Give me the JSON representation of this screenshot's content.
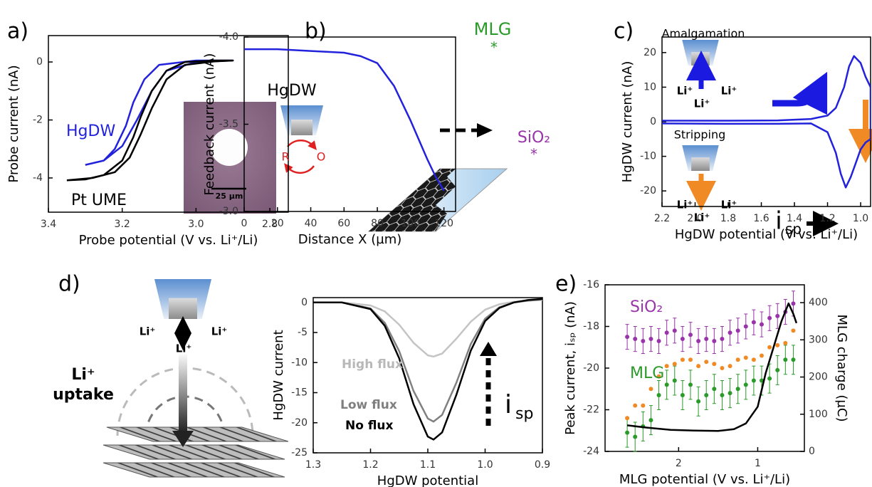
{
  "chart_data": [
    {
      "type": "line",
      "panel": "a)",
      "xlabel": "Probe potential (V vs. Li⁺/Li)",
      "ylabel": "Probe current (nA)",
      "xlim": [
        3.4,
        2.75
      ],
      "ylim": [
        -5.18,
        0.91
      ],
      "xticks": [
        3.4,
        3.2,
        {
          "value": 3,
          "label": "3.0"
        },
        2.8
      ],
      "yticks": [
        0,
        -2,
        -4
      ],
      "series": [
        {
          "name": "HgDW",
          "color": "#2222dd",
          "x": [
            3.3,
            3.25,
            3.22,
            3.19,
            3.17,
            3.14,
            3.1,
            3.0,
            2.9,
            3.0,
            3.08,
            3.12,
            3.16,
            3.2,
            3.25,
            3.3
          ],
          "values": [
            -3.55,
            -3.4,
            -3.0,
            -2.2,
            -1.4,
            -0.6,
            -0.1,
            0.05,
            0.05,
            0.0,
            -0.3,
            -1.0,
            -2.0,
            -2.9,
            -3.4,
            -3.55
          ]
        },
        {
          "name": "Pt UME",
          "color": "#000000",
          "x": [
            3.35,
            3.3,
            3.25,
            3.2,
            3.17,
            3.15,
            3.12,
            3.08,
            3.03,
            2.95,
            2.9,
            2.95,
            3.03,
            3.08,
            3.12,
            3.15,
            3.18,
            3.22,
            3.28,
            3.35
          ],
          "values": [
            -4.08,
            -4.05,
            -3.9,
            -3.4,
            -2.6,
            -1.9,
            -1.0,
            -0.3,
            0.0,
            0.05,
            0.05,
            0.02,
            -0.1,
            -0.6,
            -1.6,
            -2.5,
            -3.3,
            -3.8,
            -4.0,
            -4.08
          ]
        }
      ],
      "annotations": [
        "25 µm"
      ]
    },
    {
      "type": "line",
      "panel": "b)",
      "xlabel": "Distance X (µm)",
      "ylabel": "Feedback current (nA)",
      "xlim": [
        0,
        127
      ],
      "ylim": [
        -3.0,
        -4.0
      ],
      "xticks": [
        0,
        20,
        40,
        60,
        80,
        100,
        120
      ],
      "yticks": [
        {
          "value": -4,
          "label": "-4.0"
        },
        -3.5,
        {
          "value": -3,
          "label": "-3.0"
        }
      ],
      "series": [
        {
          "color": "#2222dd",
          "x": [
            0,
            20,
            40,
            60,
            70,
            80,
            90,
            100,
            110,
            115,
            120
          ],
          "values": [
            -3.93,
            -3.93,
            -3.92,
            -3.91,
            -3.89,
            -3.85,
            -3.72,
            -3.52,
            -3.3,
            -3.2,
            -3.12
          ]
        }
      ],
      "annotations": [
        "MLG",
        "*",
        "SiO₂",
        "*",
        "HgDW",
        "R",
        "O"
      ]
    },
    {
      "type": "line",
      "panel": "c)",
      "xlabel": "HgDW potential (V vs. Li⁺/Li)",
      "ylabel": "HgDW current (nA)",
      "xlim": [
        2.2,
        0.94
      ],
      "ylim": [
        -24.5,
        24.5
      ],
      "xticks": [
        2.2,
        {
          "value": 2,
          "label": "2.0"
        },
        1.8,
        1.6,
        1.4,
        1.2,
        {
          "value": 1,
          "label": "1.0"
        }
      ],
      "yticks": [
        20,
        10,
        0,
        -10,
        -20
      ],
      "series": [
        {
          "color": "#2222dd",
          "x": [
            2.2,
            1.8,
            1.5,
            1.3,
            1.2,
            1.15,
            1.1,
            1.07,
            1.04,
            1.0,
            0.97,
            0.94,
            0.94,
            0.97,
            1.0,
            1.03,
            1.06,
            1.09,
            1.12,
            1.15,
            1.2,
            1.3,
            1.5,
            1.8,
            2.2
          ],
          "values": [
            0.3,
            0.3,
            0.4,
            0.8,
            1.8,
            4,
            10,
            16,
            19,
            17,
            13,
            10,
            -5,
            -6,
            -8,
            -12,
            -16,
            -19,
            -15,
            -9,
            -3,
            -0.5,
            -0.6,
            -0.6,
            -0.5
          ]
        }
      ],
      "annotations": [
        "Amalgamation",
        "Li⁺",
        "Li⁺",
        "Li⁺",
        "Stripping",
        "Li⁺",
        "Li⁺",
        "Li⁺",
        "i",
        "sp"
      ]
    },
    {
      "type": "line",
      "panel": "d)",
      "xlabel": "HgDW potential",
      "ylabel": "HgDW current",
      "xlim": [
        1.3,
        0.9
      ],
      "ylim": [
        -25,
        0.8
      ],
      "xticks": [
        1.3,
        1.2,
        1.1,
        {
          "value": 1,
          "label": "1.0"
        },
        0.9
      ],
      "yticks": [
        0,
        -5,
        -10,
        -15,
        -20,
        -25
      ],
      "series": [
        {
          "name": "High flux",
          "color": "#c4c4c4",
          "x": [
            1.3,
            1.25,
            1.2,
            1.175,
            1.15,
            1.125,
            1.1,
            1.09,
            1.075,
            1.05,
            1.025,
            1.0,
            0.975,
            0.95,
            0.925,
            0.9
          ],
          "values": [
            0,
            0,
            -0.5,
            -1.5,
            -3.7,
            -6.7,
            -8.8,
            -9,
            -8.5,
            -6.0,
            -3.2,
            -1.2,
            -0.3,
            0.1,
            0.3,
            0.4
          ]
        },
        {
          "name": "Low flux",
          "color": "#808080",
          "x": [
            1.3,
            1.25,
            1.2,
            1.175,
            1.15,
            1.125,
            1.1,
            1.09,
            1.075,
            1.05,
            1.025,
            1.0,
            0.975,
            0.95,
            0.925,
            0.9
          ],
          "values": [
            0,
            0,
            -1.0,
            -3.4,
            -8.1,
            -14.7,
            -19.3,
            -19.8,
            -18.7,
            -13.3,
            -6.9,
            -2.7,
            -0.8,
            0,
            0.3,
            0.5
          ]
        },
        {
          "name": "No flux",
          "color": "#000000",
          "x": [
            1.3,
            1.25,
            1.2,
            1.175,
            1.15,
            1.125,
            1.1,
            1.09,
            1.075,
            1.05,
            1.025,
            1.0,
            0.975,
            0.95,
            0.925,
            0.9
          ],
          "values": [
            0,
            0,
            -1.1,
            -3.9,
            -9.3,
            -16.9,
            -22.3,
            -22.8,
            -21.6,
            -15.3,
            -8.0,
            -3.1,
            -0.9,
            0,
            0.4,
            0.6
          ]
        }
      ],
      "annotations": [
        "Li⁺",
        "Li⁺",
        "Li⁺",
        "Li⁺",
        "uptake",
        "i",
        "sp"
      ]
    },
    {
      "type": "combo",
      "panel": "e)",
      "xlabel": "MLG potential (V vs. Li⁺/Li)",
      "ylabel": "Peak current, iₛₚ (nA)",
      "y2label": "MLG charge (µC)",
      "xlim": [
        2.93,
        0.41
      ],
      "ylim": [
        -24,
        -16
      ],
      "y2lim": [
        0,
        448
      ],
      "xticks": [
        2,
        1
      ],
      "yticks": [
        -16,
        -18,
        -20,
        -22,
        -24
      ],
      "y2ticks": [
        0,
        100,
        200,
        300,
        400
      ],
      "series": [
        {
          "name": "SiO₂",
          "color": "#9933aa",
          "mode": "markers",
          "x": [
            2.65,
            2.55,
            2.45,
            2.35,
            2.25,
            2.15,
            2.05,
            1.95,
            1.85,
            1.75,
            1.65,
            1.55,
            1.45,
            1.35,
            1.25,
            1.15,
            1.05,
            0.95,
            0.85,
            0.75,
            0.65,
            0.55
          ],
          "values": [
            -18.5,
            -18.6,
            -18.7,
            -18.6,
            -18.7,
            -18.3,
            -18.2,
            -18.6,
            -18.4,
            -18.7,
            -18.6,
            -18.7,
            -18.6,
            -18.3,
            -18.2,
            -18.0,
            -17.8,
            -17.9,
            -17.6,
            -17.5,
            -17.3,
            -16.9
          ],
          "errors": [
            0.6,
            0.6,
            0.6,
            0.6,
            0.6,
            0.6,
            0.6,
            0.6,
            0.6,
            0.6,
            0.6,
            0.6,
            0.6,
            0.6,
            0.6,
            0.6,
            0.6,
            0.6,
            0.6,
            0.6,
            0.6,
            0.6
          ]
        },
        {
          "name": "MLG",
          "color": "#2a9a2a",
          "mode": "markers",
          "x": [
            2.65,
            2.55,
            2.45,
            2.35,
            2.25,
            2.15,
            2.05,
            1.95,
            1.85,
            1.75,
            1.65,
            1.55,
            1.45,
            1.35,
            1.25,
            1.15,
            1.05,
            0.95,
            0.85,
            0.75,
            0.65,
            0.55
          ],
          "values": [
            -23.1,
            -23.3,
            -22.8,
            -22.5,
            -21.3,
            -20.8,
            -20.6,
            -21.3,
            -20.8,
            -21.6,
            -21.3,
            -21.0,
            -21.3,
            -21.2,
            -21.0,
            -20.8,
            -20.6,
            -20.6,
            -20.5,
            -20.1,
            -19.6,
            -19.6
          ],
          "errors": [
            0.7,
            0.7,
            0.7,
            0.7,
            0.7,
            0.7,
            0.7,
            0.7,
            0.7,
            0.7,
            0.7,
            0.7,
            0.7,
            0.7,
            0.7,
            0.7,
            0.7,
            0.7,
            0.7,
            0.7,
            0.7,
            0.7
          ]
        },
        {
          "color": "#f08a24",
          "mode": "markers",
          "x": [
            2.65,
            2.55,
            2.45,
            2.35,
            2.25,
            2.15,
            2.05,
            1.95,
            1.85,
            1.75,
            1.65,
            1.55,
            1.45,
            1.35,
            1.25,
            1.15,
            1.05,
            0.95,
            0.85,
            0.75,
            0.65,
            0.55
          ],
          "values": [
            -22.4,
            -21.8,
            -21.8,
            -21.0,
            -20.4,
            -19.9,
            -19.8,
            -19.6,
            -19.6,
            -19.9,
            -19.7,
            -19.8,
            -20.0,
            -19.9,
            -19.6,
            -19.5,
            -19.6,
            -19.4,
            -19.0,
            -18.9,
            -18.8,
            -18.2
          ]
        },
        {
          "color": "#000000",
          "mode": "line",
          "axis": "y2",
          "x": [
            2.65,
            2.4,
            2.1,
            1.8,
            1.5,
            1.3,
            1.15,
            1.0,
            0.9,
            0.8,
            0.7,
            0.61,
            0.55,
            0.51
          ],
          "values": [
            70,
            64,
            58,
            56,
            55,
            60,
            75,
            120,
            210,
            280,
            350,
            398,
            370,
            345
          ]
        }
      ],
      "annotations": []
    }
  ]
}
